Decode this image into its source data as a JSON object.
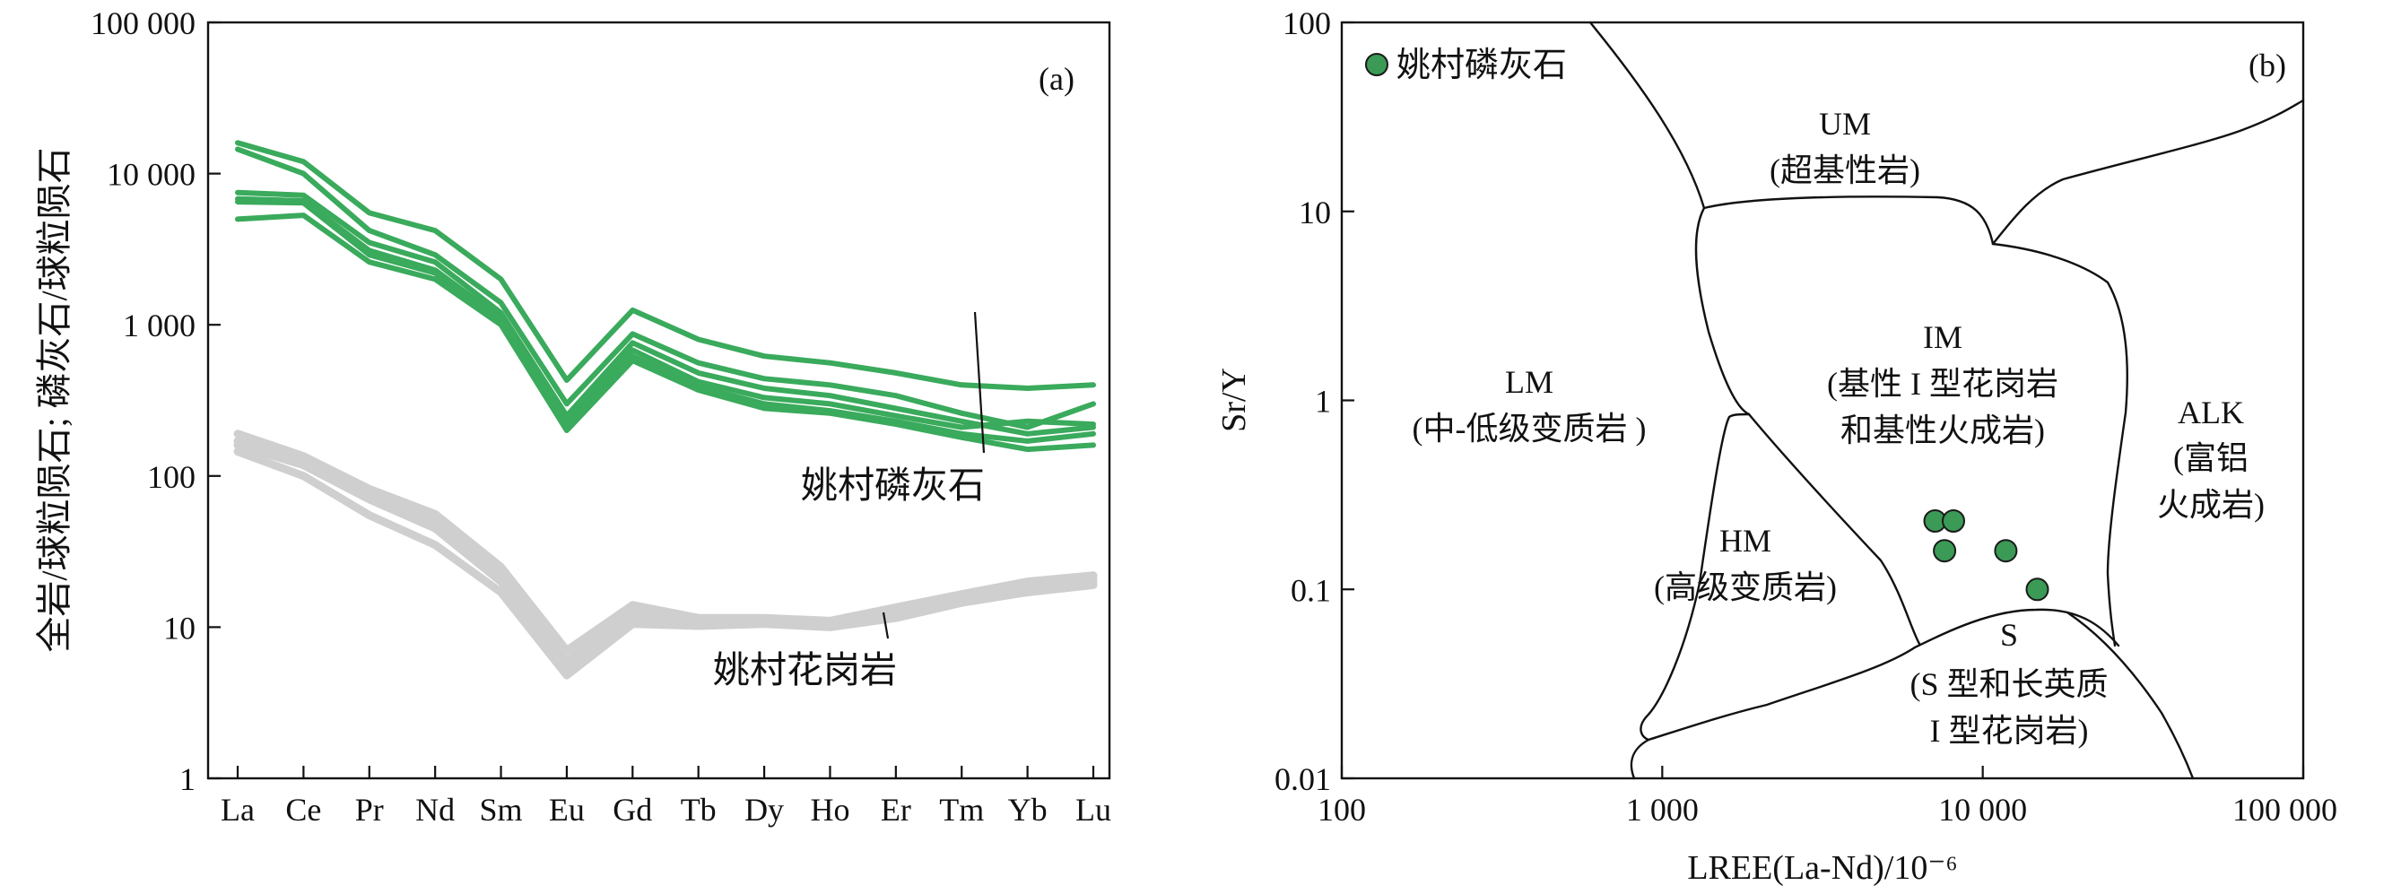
{
  "chart_data": [
    {
      "type": "line",
      "panel_label": "(a)",
      "ylabel": "全岩/球粒陨石; 磷灰石/球粒陨石",
      "yscale": "log",
      "ylim": [
        1,
        100000
      ],
      "yticks": [
        "1",
        "10",
        "100",
        "1 000",
        "10 000",
        "100 000"
      ],
      "categories": [
        "La",
        "Ce",
        "Pr",
        "Nd",
        "Sm",
        "Eu",
        "Gd",
        "Tb",
        "Dy",
        "Ho",
        "Er",
        "Tm",
        "Yb",
        "Lu"
      ],
      "group_labels": {
        "apatite": "姚村磷灰石",
        "granite": "姚村花岗岩"
      },
      "colors": {
        "apatite": "#3aaa5c",
        "granite": "#cfcfcf"
      },
      "series": [
        {
          "group": "apatite",
          "values": [
            16000,
            12000,
            5500,
            4200,
            2000,
            430,
            1250,
            800,
            620,
            560,
            480,
            400,
            380,
            400
          ]
        },
        {
          "group": "apatite",
          "values": [
            14500,
            10000,
            4200,
            2900,
            1400,
            300,
            870,
            560,
            440,
            400,
            340,
            260,
            210,
            300
          ]
        },
        {
          "group": "apatite",
          "values": [
            7500,
            7200,
            3500,
            2600,
            1200,
            250,
            760,
            480,
            380,
            340,
            280,
            230,
            190,
            210
          ]
        },
        {
          "group": "apatite",
          "values": [
            6800,
            6600,
            3100,
            2300,
            1100,
            230,
            680,
            420,
            330,
            300,
            250,
            210,
            230,
            220
          ]
        },
        {
          "group": "apatite",
          "values": [
            6500,
            6400,
            2900,
            2200,
            1050,
            220,
            620,
            390,
            300,
            270,
            230,
            190,
            170,
            190
          ]
        },
        {
          "group": "apatite",
          "values": [
            5000,
            5300,
            2600,
            2000,
            1000,
            200,
            580,
            370,
            280,
            260,
            220,
            180,
            150,
            160
          ]
        },
        {
          "group": "granite",
          "values": [
            190,
            135,
            82,
            56,
            25,
            7.0,
            14,
            11.5,
            11.5,
            11.0,
            13.5,
            16.5,
            20,
            22
          ]
        },
        {
          "group": "granite",
          "values": [
            170,
            125,
            76,
            50,
            22,
            6.0,
            12.5,
            11,
            11,
            10.5,
            12.5,
            15.5,
            19,
            21
          ]
        },
        {
          "group": "granite",
          "values": [
            160,
            118,
            70,
            45,
            20,
            5.5,
            11.5,
            10.5,
            10.8,
            10.3,
            12,
            15,
            18,
            20
          ]
        },
        {
          "group": "granite",
          "values": [
            145,
            100,
            55,
            35,
            17,
            4.8,
            10.5,
            10.2,
            10.5,
            10,
            11.5,
            14.5,
            17,
            19
          ]
        }
      ]
    },
    {
      "type": "scatter",
      "panel_label": "(b)",
      "xlabel": "LREE(La-Nd)/10⁻⁶",
      "ylabel": "Sr/Y",
      "xscale": "log",
      "yscale": "log",
      "xlim": [
        100,
        100000
      ],
      "ylim": [
        0.01,
        100
      ],
      "xticks": [
        "100",
        "1 000",
        "10 000",
        "100 000"
      ],
      "yticks": [
        "0.01",
        "0.1",
        "1",
        "10",
        "100"
      ],
      "legend": "姚村磷灰石",
      "legend_position": "top-left",
      "point_color": "#3a9a56",
      "points": [
        {
          "x": 7100,
          "y": 0.23
        },
        {
          "x": 8100,
          "y": 0.23
        },
        {
          "x": 7600,
          "y": 0.16
        },
        {
          "x": 11800,
          "y": 0.16
        },
        {
          "x": 14800,
          "y": 0.1
        }
      ],
      "fields": [
        {
          "id": "UM",
          "abbr": "UM",
          "name": "(超基性岩)"
        },
        {
          "id": "LM",
          "abbr": "LM",
          "name": "(中-低级变质岩 )"
        },
        {
          "id": "IM",
          "abbr": "IM",
          "name_lines": [
            "(基性 I 型花岗岩",
            "和基性火成岩)"
          ]
        },
        {
          "id": "ALK",
          "abbr": "ALK",
          "name_lines": [
            "(富铝",
            "火成岩)"
          ]
        },
        {
          "id": "HM",
          "abbr": "HM",
          "name": "(高级变质岩)"
        },
        {
          "id": "S",
          "abbr": "S",
          "name_lines": [
            "(S 型和长英质",
            "I 型花岗岩)"
          ]
        }
      ]
    }
  ]
}
